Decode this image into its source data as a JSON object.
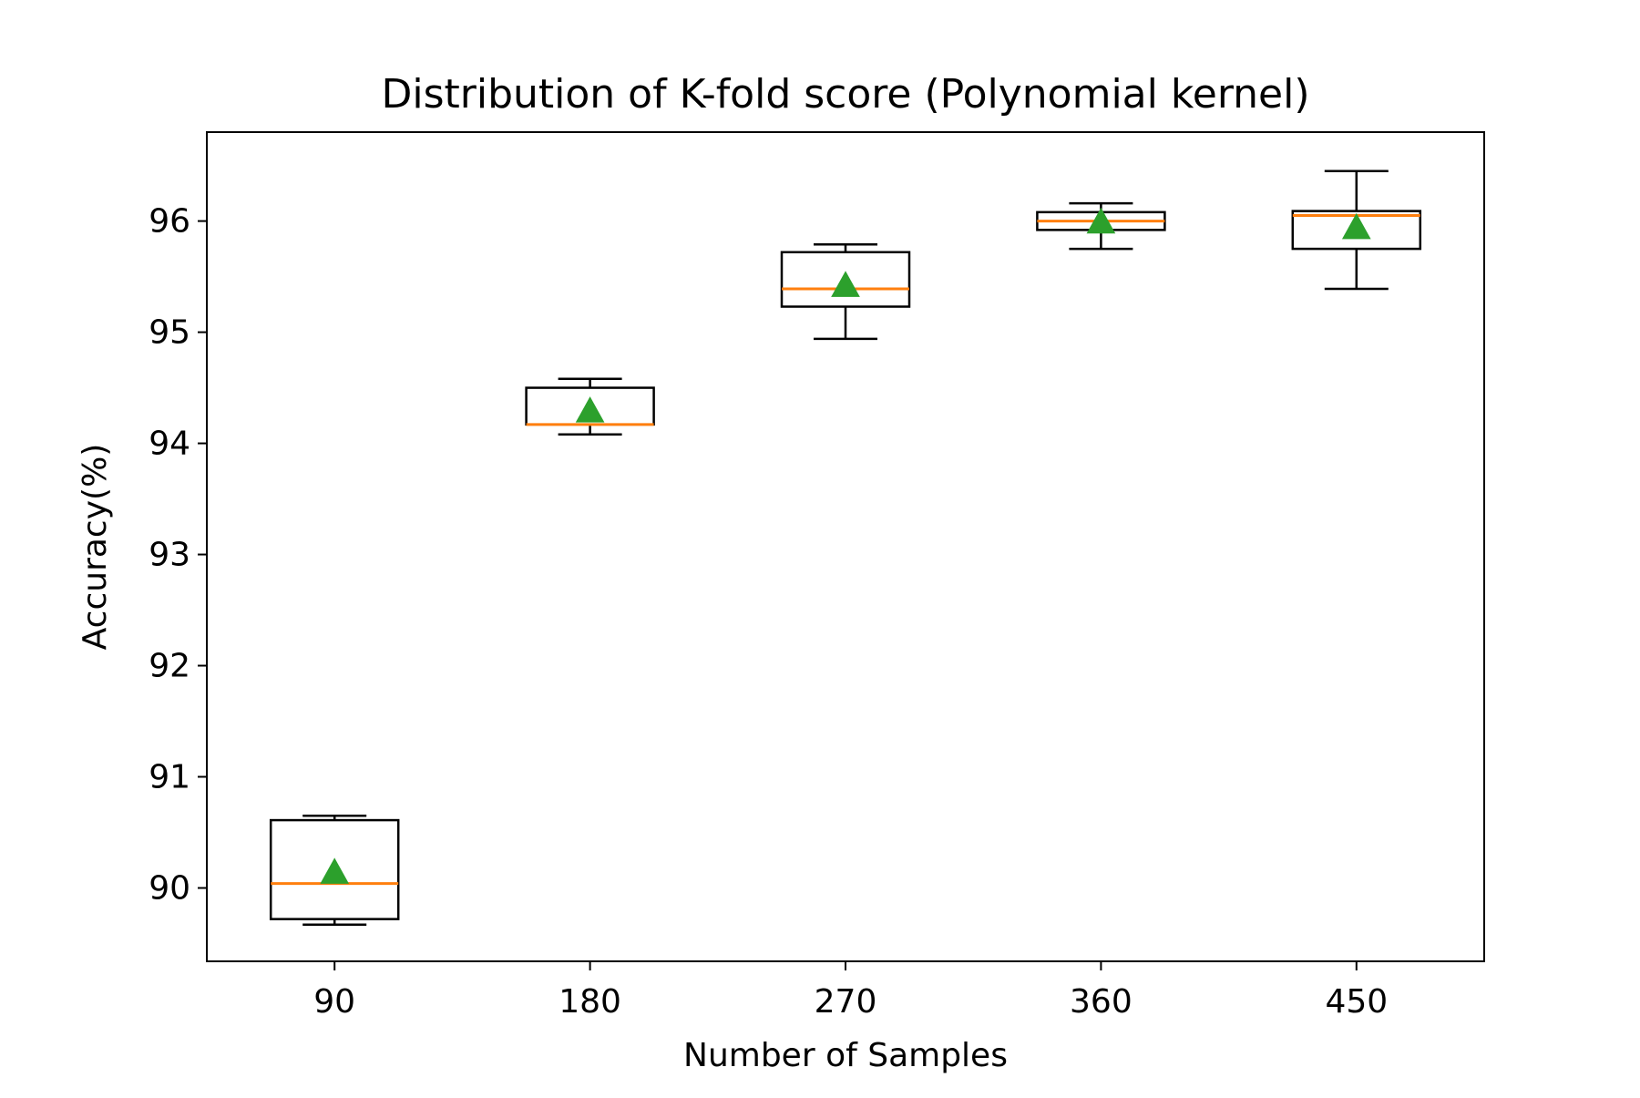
{
  "chart_data": {
    "type": "box",
    "title": "Distribution of K-fold score (Polynomial kernel)",
    "xlabel": "Number of Samples",
    "ylabel": "Accuracy(%)",
    "categories": [
      "90",
      "180",
      "270",
      "360",
      "450"
    ],
    "ylim": [
      89.34,
      96.8
    ],
    "yticks": [
      90,
      91,
      92,
      93,
      94,
      95,
      96
    ],
    "ytick_labels": [
      "90",
      "91",
      "92",
      "93",
      "94",
      "95",
      "96"
    ],
    "grid": false,
    "legend": "none",
    "series": [
      {
        "stats": [
          {
            "whisker_low": 89.67,
            "q1": 89.72,
            "median": 90.04,
            "q3": 90.61,
            "whisker_high": 90.65,
            "mean": 90.14
          },
          {
            "whisker_low": 94.08,
            "q1": 94.17,
            "median": 94.17,
            "q3": 94.5,
            "whisker_high": 94.58,
            "mean": 94.29
          },
          {
            "whisker_low": 94.94,
            "q1": 95.23,
            "median": 95.39,
            "q3": 95.72,
            "whisker_high": 95.79,
            "mean": 95.42
          },
          {
            "whisker_low": 95.75,
            "q1": 95.92,
            "median": 96.0,
            "q3": 96.08,
            "whisker_high": 96.16,
            "mean": 95.99
          },
          {
            "whisker_low": 95.39,
            "q1": 95.75,
            "median": 96.05,
            "q3": 96.09,
            "whisker_high": 96.45,
            "mean": 95.94
          }
        ]
      }
    ],
    "colors": {
      "box": "#000000",
      "median": "#ff7f0e",
      "mean_marker": "#2ca02c"
    }
  }
}
